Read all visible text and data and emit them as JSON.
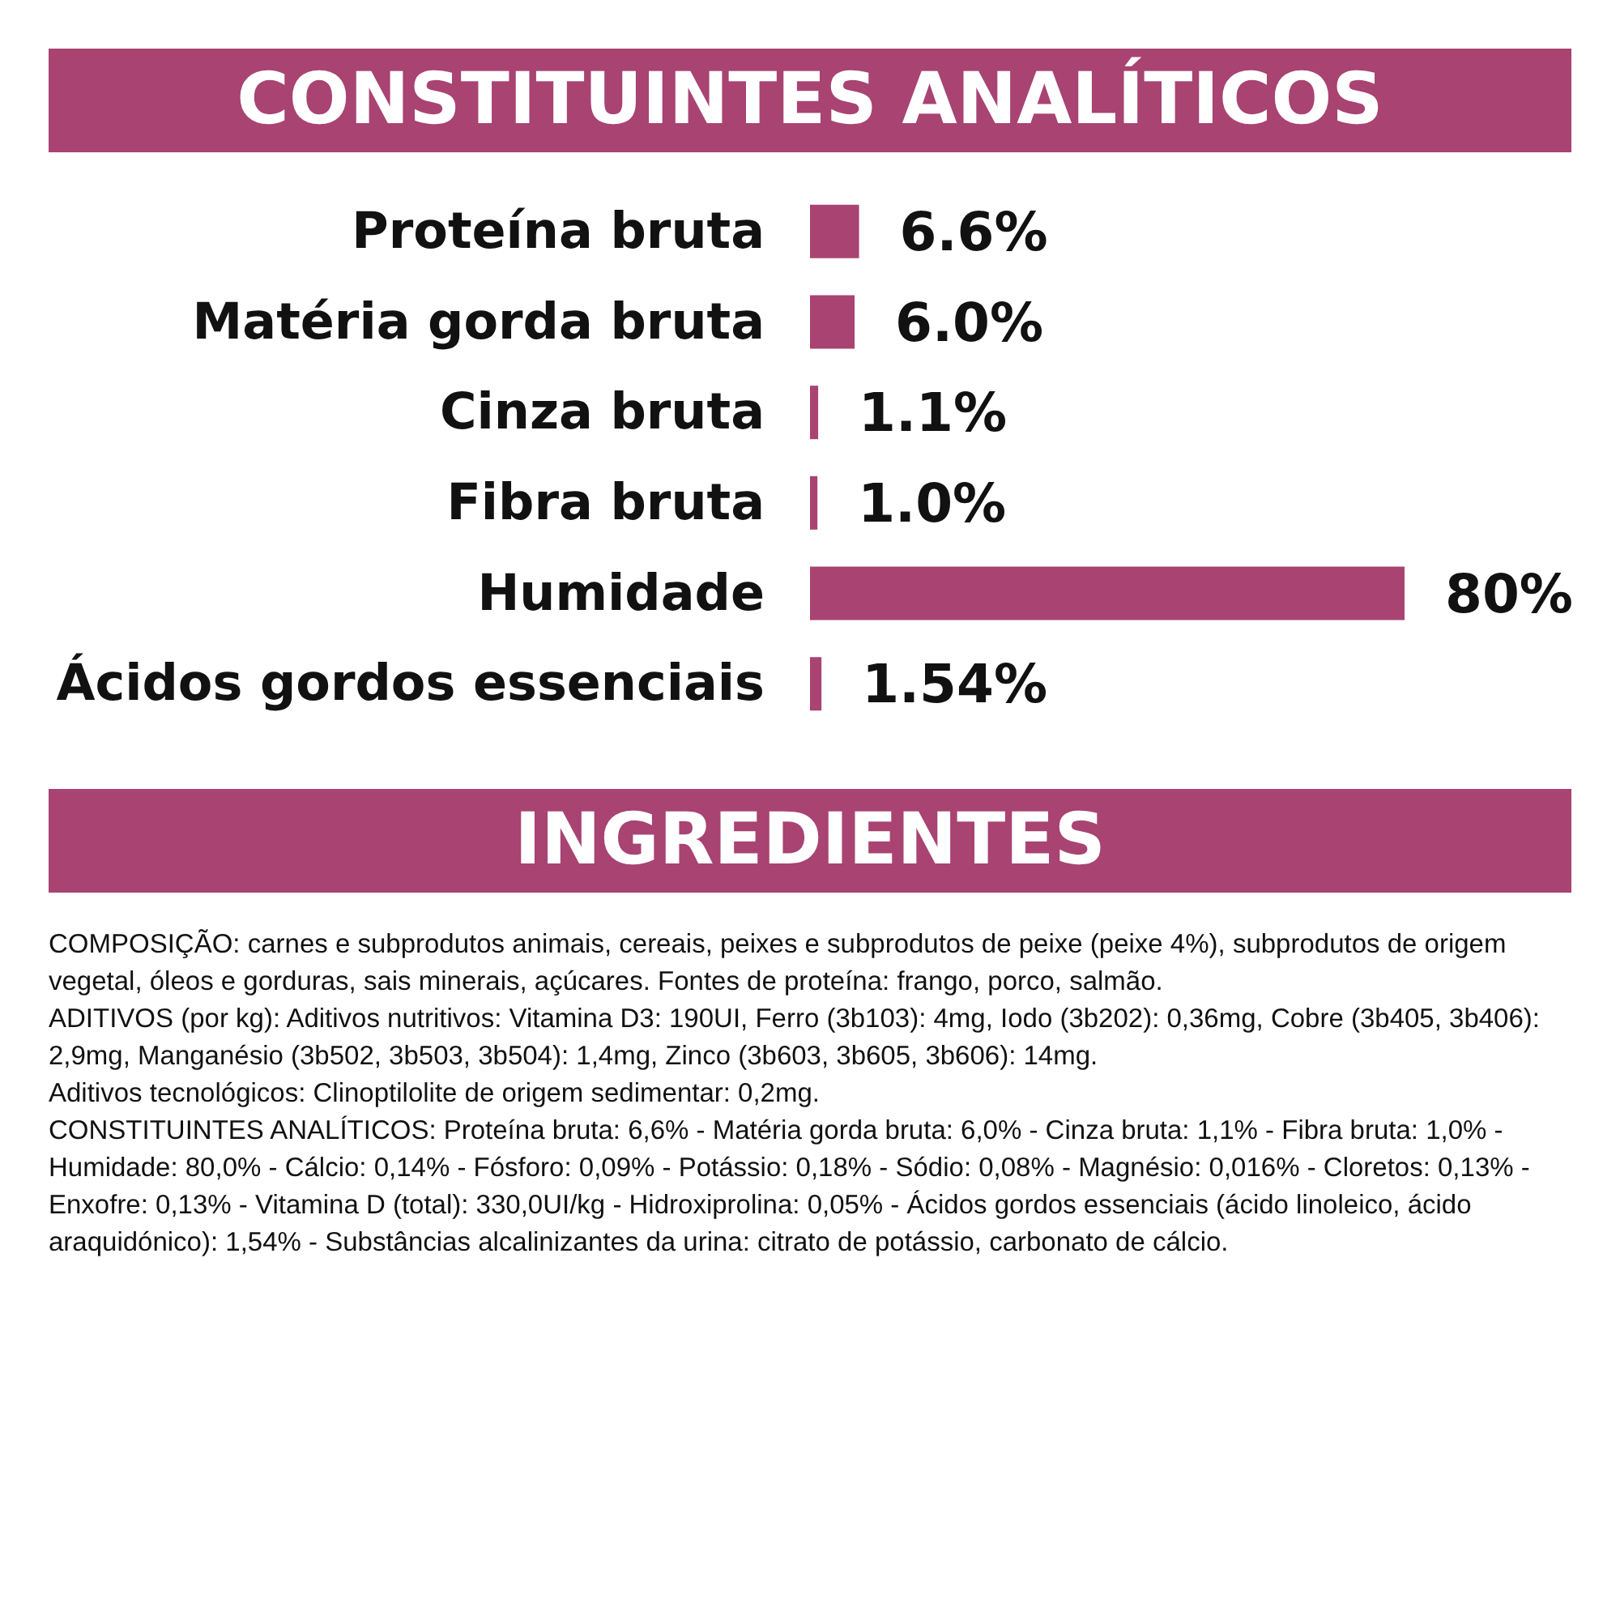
{
  "chart_data": {
    "type": "bar",
    "orientation": "horizontal",
    "title": "CONSTITUINTES ANALÍTICOS",
    "categories": [
      "Proteína bruta",
      "Matéria gorda bruta",
      "Cinza bruta",
      "Fibra bruta",
      "Humidade",
      "Ácidos gordos essenciais"
    ],
    "values": [
      6.6,
      6.0,
      1.1,
      1.0,
      80,
      1.54
    ],
    "value_labels": [
      "6.6%",
      "6.0%",
      "1.1%",
      "1.0%",
      "80%",
      "1.54%"
    ],
    "color": "#a84372",
    "annotations": [
      "INGREDIENTES",
      "COMPOSIÇÃO: carnes e subprodutos animais, cereais, peixes e subprodutos de peixe (peixe 4%), subprodutos de origem vegetal, óleos e gorduras, sais minerais, açúcares. Fontes de proteína: frango, porco, salmão.",
      "ADITIVOS (por kg): Aditivos nutritivos: Vitamina D3: 190UI, Ferro (3b103): 4mg, Iodo (3b202): 0,36mg, Cobre (3b405, 3b406): 2,9mg, Manganésio (3b502, 3b503, 3b504): 1,4mg, Zinco (3b603, 3b605, 3b606): 14mg.",
      "Aditivos tecnológicos: Clinoptilolite de origem sedimentar: 0,2mg.",
      "CONSTITUINTES ANALÍTICOS: Proteína bruta: 6,6% - Matéria gorda bruta: 6,0% - Cinza bruta: 1,1% - Fibra bruta: 1,0% - Humidade: 80,0% - Cálcio: 0,14% - Fósforo: 0,09% - Potássio: 0,18% - Sódio: 0,08% - Magnésio: 0,016% - Cloretos: 0,13% - Enxofre: 0,13% - Vitamina D (total): 330,0UI/kg - Hidroxiprolina: 0,05% - Ácidos gordos essenciais (ácido linoleico, ácido araquidónico): 1,54% - Substâncias alcalinizantes da urina: citrato de potássio, carbonato de cálcio."
    ],
    "tick_labels": "y"
  }
}
